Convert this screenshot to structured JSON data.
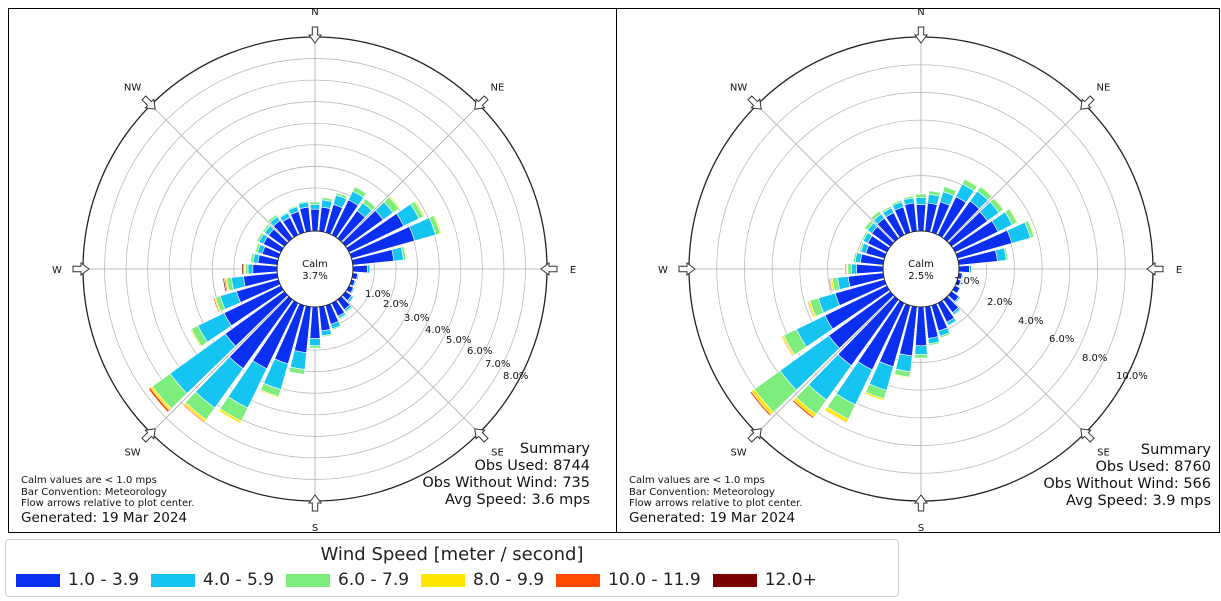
{
  "chart_data": [
    {
      "type": "windrose",
      "directions": [
        "N",
        "NE",
        "E",
        "SE",
        "S",
        "SW",
        "W",
        "NW"
      ],
      "calm": {
        "label": "Calm",
        "value": "3.7%"
      },
      "radial_ticks": [
        "1.0%",
        "2.0%",
        "3.0%",
        "4.0%",
        "5.0%",
        "6.0%",
        "7.0%",
        "8.0%"
      ],
      "radial_max": 8.0,
      "bar_convention": "Meteorology",
      "speed_bins": [
        "1.0 - 3.9",
        "4.0 - 5.9",
        "6.0 - 7.9",
        "8.0 - 9.9",
        "10.0 - 11.9",
        "12.0+"
      ],
      "bars": [
        {
          "dir": 0,
          "v": [
            0.9,
            0.2,
            0.1,
            0,
            0,
            0
          ]
        },
        {
          "dir": 10,
          "v": [
            1.0,
            0.3,
            0.1,
            0,
            0,
            0
          ]
        },
        {
          "dir": 20,
          "v": [
            1.2,
            0.4,
            0.1,
            0,
            0,
            0
          ]
        },
        {
          "dir": 30,
          "v": [
            1.6,
            0.4,
            0.2,
            0,
            0,
            0
          ]
        },
        {
          "dir": 40,
          "v": [
            1.4,
            0.4,
            0.2,
            0,
            0,
            0
          ]
        },
        {
          "dir": 50,
          "v": [
            1.9,
            0.5,
            0.3,
            0.05,
            0,
            0
          ]
        },
        {
          "dir": 60,
          "v": [
            2.5,
            0.7,
            0.2,
            0.05,
            0,
            0
          ]
        },
        {
          "dir": 70,
          "v": [
            2.7,
            0.9,
            0.2,
            0.05,
            0,
            0
          ]
        },
        {
          "dir": 80,
          "v": [
            1.7,
            0.4,
            0.1,
            0,
            0,
            0
          ]
        },
        {
          "dir": 90,
          "v": [
            0.6,
            0.1,
            0,
            0,
            0,
            0
          ]
        },
        {
          "dir": 100,
          "v": [
            0.2,
            0.05,
            0,
            0,
            0,
            0
          ]
        },
        {
          "dir": 110,
          "v": [
            0.15,
            0.05,
            0,
            0,
            0,
            0
          ]
        },
        {
          "dir": 120,
          "v": [
            0.2,
            0.05,
            0,
            0,
            0,
            0
          ]
        },
        {
          "dir": 130,
          "v": [
            0.3,
            0.1,
            0,
            0,
            0,
            0
          ]
        },
        {
          "dir": 140,
          "v": [
            0.5,
            0.1,
            0.05,
            0,
            0,
            0
          ]
        },
        {
          "dir": 150,
          "v": [
            0.6,
            0.1,
            0.05,
            0,
            0,
            0
          ]
        },
        {
          "dir": 160,
          "v": [
            0.8,
            0.2,
            0.05,
            0,
            0,
            0
          ]
        },
        {
          "dir": 170,
          "v": [
            1.0,
            0.2,
            0.05,
            0,
            0,
            0
          ]
        },
        {
          "dir": 180,
          "v": [
            1.3,
            0.3,
            0.1,
            0,
            0,
            0
          ]
        },
        {
          "dir": 190,
          "v": [
            1.9,
            0.7,
            0.2,
            0,
            0,
            0
          ]
        },
        {
          "dir": 200,
          "v": [
            2.5,
            1.1,
            0.3,
            0.05,
            0,
            0
          ]
        },
        {
          "dir": 210,
          "v": [
            3.0,
            1.8,
            0.6,
            0.1,
            0,
            0
          ]
        },
        {
          "dir": 220,
          "v": [
            3.5,
            2.0,
            0.6,
            0.1,
            0.05,
            0
          ]
        },
        {
          "dir": 230,
          "v": [
            3.0,
            2.8,
            0.9,
            0.1,
            0.1,
            0
          ]
        },
        {
          "dir": 240,
          "v": [
            2.6,
            1.2,
            0.3,
            0.05,
            0,
            0
          ]
        },
        {
          "dir": 250,
          "v": [
            1.8,
            0.7,
            0.2,
            0.05,
            0.05,
            0
          ]
        },
        {
          "dir": 260,
          "v": [
            1.4,
            0.5,
            0.2,
            0.05,
            0.05,
            0.05
          ]
        },
        {
          "dir": 270,
          "v": [
            1.0,
            0.2,
            0.1,
            0.05,
            0.05,
            0.05
          ]
        },
        {
          "dir": 280,
          "v": [
            0.8,
            0.2,
            0.1,
            0,
            0,
            0
          ]
        },
        {
          "dir": 290,
          "v": [
            0.7,
            0.2,
            0.1,
            0,
            0,
            0
          ]
        },
        {
          "dir": 300,
          "v": [
            0.8,
            0.2,
            0.1,
            0,
            0,
            0
          ]
        },
        {
          "dir": 310,
          "v": [
            0.8,
            0.2,
            0.1,
            0,
            0,
            0
          ]
        },
        {
          "dir": 320,
          "v": [
            0.9,
            0.2,
            0.1,
            0,
            0,
            0
          ]
        },
        {
          "dir": 330,
          "v": [
            0.8,
            0.2,
            0.05,
            0,
            0,
            0
          ]
        },
        {
          "dir": 340,
          "v": [
            0.9,
            0.2,
            0.05,
            0,
            0,
            0
          ]
        },
        {
          "dir": 350,
          "v": [
            1.0,
            0.2,
            0.05,
            0,
            0,
            0
          ]
        }
      ],
      "summary": {
        "title": "Summary",
        "obs_used": "Obs Used: 8744",
        "obs_without_wind": "Obs Without Wind: 735",
        "avg_speed": "Avg Speed: 3.6 mps"
      },
      "notes": {
        "calm_note": "Calm values are < 1.0 mps",
        "bar_convention": "Bar Convention: Meteorology",
        "flow_note": "Flow arrows relative to plot center.",
        "generated": "Generated: 19 Mar 2024"
      }
    },
    {
      "type": "windrose",
      "directions": [
        "N",
        "NE",
        "E",
        "SE",
        "S",
        "SW",
        "W",
        "NW"
      ],
      "calm": {
        "label": "Calm",
        "value": "2.5%"
      },
      "radial_ticks": [
        "1.0%",
        "2.0%",
        "4.0%",
        "6.0%",
        "8.0%",
        "10.0%"
      ],
      "radial_max": 11.0,
      "bar_convention": "Meteorology",
      "speed_bins": [
        "1.0 - 3.9",
        "4.0 - 5.9",
        "6.0 - 7.9",
        "8.0 - 9.9",
        "10.0 - 11.9",
        "12.0+"
      ],
      "bars": [
        {
          "dir": 0,
          "v": [
            1.5,
            0.4,
            0.2,
            0,
            0,
            0
          ]
        },
        {
          "dir": 10,
          "v": [
            1.6,
            0.5,
            0.2,
            0,
            0,
            0
          ]
        },
        {
          "dir": 20,
          "v": [
            1.8,
            0.6,
            0.3,
            0,
            0,
            0
          ]
        },
        {
          "dir": 30,
          "v": [
            2.4,
            0.8,
            0.3,
            0.05,
            0,
            0
          ]
        },
        {
          "dir": 40,
          "v": [
            2.6,
            0.7,
            0.3,
            0.05,
            0,
            0
          ]
        },
        {
          "dir": 50,
          "v": [
            2.5,
            0.8,
            0.3,
            0.05,
            0,
            0
          ]
        },
        {
          "dir": 60,
          "v": [
            2.7,
            0.9,
            0.3,
            0.05,
            0,
            0
          ]
        },
        {
          "dir": 70,
          "v": [
            3.2,
            1.1,
            0.2,
            0.05,
            0,
            0
          ]
        },
        {
          "dir": 80,
          "v": [
            2.2,
            0.5,
            0.1,
            0,
            0,
            0
          ]
        },
        {
          "dir": 90,
          "v": [
            0.6,
            0.1,
            0,
            0,
            0,
            0
          ]
        },
        {
          "dir": 100,
          "v": [
            0.2,
            0.05,
            0,
            0,
            0,
            0
          ]
        },
        {
          "dir": 110,
          "v": [
            0.2,
            0.05,
            0,
            0,
            0,
            0
          ]
        },
        {
          "dir": 120,
          "v": [
            0.3,
            0.05,
            0,
            0,
            0,
            0
          ]
        },
        {
          "dir": 130,
          "v": [
            0.5,
            0.1,
            0,
            0,
            0,
            0
          ]
        },
        {
          "dir": 140,
          "v": [
            0.9,
            0.15,
            0.05,
            0,
            0,
            0
          ]
        },
        {
          "dir": 150,
          "v": [
            1.2,
            0.2,
            0.05,
            0,
            0,
            0
          ]
        },
        {
          "dir": 160,
          "v": [
            1.5,
            0.3,
            0.1,
            0,
            0,
            0
          ]
        },
        {
          "dir": 170,
          "v": [
            1.8,
            0.3,
            0.1,
            0,
            0,
            0
          ]
        },
        {
          "dir": 180,
          "v": [
            2.2,
            0.5,
            0.2,
            0,
            0,
            0
          ]
        },
        {
          "dir": 190,
          "v": [
            2.8,
            0.9,
            0.3,
            0.05,
            0,
            0
          ]
        },
        {
          "dir": 200,
          "v": [
            3.6,
            1.4,
            0.5,
            0.1,
            0,
            0
          ]
        },
        {
          "dir": 210,
          "v": [
            4.2,
            2.2,
            0.9,
            0.2,
            0.05,
            0
          ]
        },
        {
          "dir": 220,
          "v": [
            4.6,
            2.4,
            1.0,
            0.2,
            0.1,
            0
          ]
        },
        {
          "dir": 230,
          "v": [
            4.3,
            3.4,
            1.8,
            0.2,
            0.1,
            0
          ]
        },
        {
          "dir": 240,
          "v": [
            3.9,
            1.8,
            0.8,
            0.1,
            0.05,
            0
          ]
        },
        {
          "dir": 250,
          "v": [
            2.9,
            1.0,
            0.5,
            0.1,
            0.05,
            0
          ]
        },
        {
          "dir": 260,
          "v": [
            2.0,
            0.6,
            0.3,
            0.1,
            0.05,
            0.05
          ]
        },
        {
          "dir": 270,
          "v": [
            1.5,
            0.3,
            0.2,
            0.05,
            0.05,
            0.05
          ]
        },
        {
          "dir": 280,
          "v": [
            1.3,
            0.3,
            0.1,
            0,
            0,
            0
          ]
        },
        {
          "dir": 290,
          "v": [
            1.1,
            0.3,
            0.1,
            0,
            0,
            0
          ]
        },
        {
          "dir": 300,
          "v": [
            1.2,
            0.3,
            0.1,
            0,
            0,
            0
          ]
        },
        {
          "dir": 310,
          "v": [
            1.3,
            0.3,
            0.2,
            0,
            0,
            0
          ]
        },
        {
          "dir": 320,
          "v": [
            1.4,
            0.3,
            0.2,
            0,
            0,
            0
          ]
        },
        {
          "dir": 330,
          "v": [
            1.4,
            0.3,
            0.1,
            0,
            0,
            0
          ]
        },
        {
          "dir": 340,
          "v": [
            1.5,
            0.3,
            0.1,
            0,
            0,
            0
          ]
        },
        {
          "dir": 350,
          "v": [
            1.6,
            0.3,
            0.1,
            0,
            0,
            0
          ]
        }
      ],
      "summary": {
        "title": "Summary",
        "obs_used": "Obs Used: 8760",
        "obs_without_wind": "Obs Without Wind: 566",
        "avg_speed": "Avg Speed: 3.9 mps"
      },
      "notes": {
        "calm_note": "Calm values are < 1.0 mps",
        "bar_convention": "Bar Convention: Meteorology",
        "flow_note": "Flow arrows relative to plot center.",
        "generated": "Generated: 19 Mar 2024"
      }
    }
  ],
  "legend": {
    "title": "Wind Speed [meter / second]",
    "items": [
      {
        "label": "1.0 - 3.9",
        "color": "#0a2ff0"
      },
      {
        "label": "4.0 - 5.9",
        "color": "#16c4f2"
      },
      {
        "label": "6.0 - 7.9",
        "color": "#7dee7d"
      },
      {
        "label": "8.0 - 9.9",
        "color": "#ffe600"
      },
      {
        "label": "10.0 - 11.9",
        "color": "#ff4a00"
      },
      {
        "label": "12.0+",
        "color": "#7a0000"
      }
    ]
  }
}
